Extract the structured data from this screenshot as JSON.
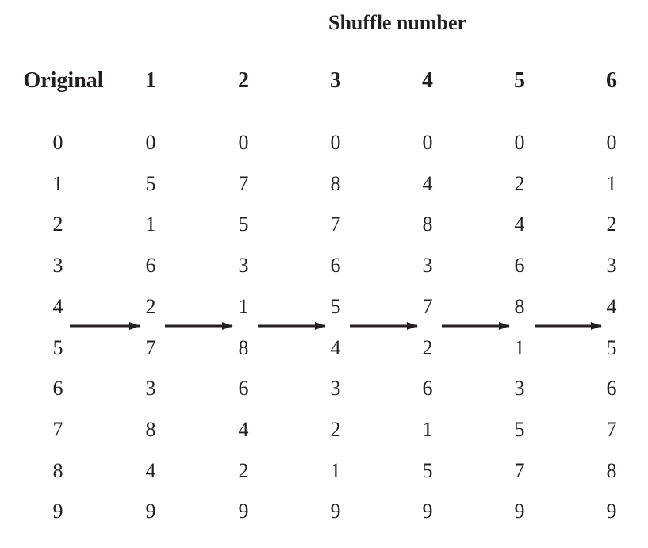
{
  "title": "Shuffle number",
  "headers": [
    "Original",
    "1",
    "2",
    "3",
    "4",
    "5",
    "6"
  ],
  "columns": [
    [
      "0",
      "1",
      "2",
      "3",
      "4",
      "5",
      "6",
      "7",
      "8",
      "9"
    ],
    [
      "0",
      "5",
      "1",
      "6",
      "2",
      "7",
      "3",
      "8",
      "4",
      "9"
    ],
    [
      "0",
      "7",
      "5",
      "3",
      "1",
      "8",
      "6",
      "4",
      "2",
      "9"
    ],
    [
      "0",
      "8",
      "7",
      "6",
      "5",
      "4",
      "3",
      "2",
      "1",
      "9"
    ],
    [
      "0",
      "4",
      "8",
      "3",
      "7",
      "2",
      "6",
      "1",
      "5",
      "9"
    ],
    [
      "0",
      "2",
      "4",
      "6",
      "8",
      "1",
      "3",
      "5",
      "7",
      "9"
    ],
    [
      "0",
      "1",
      "2",
      "3",
      "4",
      "5",
      "6",
      "7",
      "8",
      "9"
    ]
  ]
}
